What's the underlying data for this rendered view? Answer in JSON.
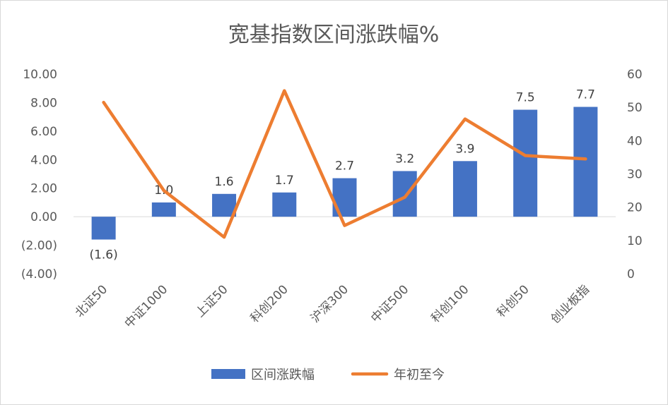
{
  "chart_data": {
    "type": "bar",
    "title": "宽基指数区间涨跌幅%",
    "categories": [
      "北证50",
      "中证1000",
      "上证50",
      "科创200",
      "沪深300",
      "中证500",
      "科创100",
      "科创50",
      "创业板指"
    ],
    "series": [
      {
        "name": "区间涨跌幅",
        "type": "bar",
        "axis": "left",
        "values": [
          -1.6,
          1.0,
          1.6,
          1.7,
          2.7,
          3.2,
          3.9,
          7.5,
          7.7
        ],
        "data_labels": [
          "(1.6)",
          "1.0",
          "1.6",
          "1.7",
          "2.7",
          "3.2",
          "3.9",
          "7.5",
          "7.7"
        ],
        "color": "#4472C4"
      },
      {
        "name": "年初至今",
        "type": "line",
        "axis": "right",
        "values": [
          51.5,
          25,
          11,
          55,
          14.5,
          23,
          46.5,
          35.5,
          34.5
        ],
        "color": "#ED7D31"
      }
    ],
    "y_left": {
      "ylim": [
        -4,
        10
      ],
      "ticks": [
        10,
        8,
        6,
        4,
        2,
        0,
        -2,
        -4
      ],
      "tick_labels": [
        "10.00",
        "8.00",
        "6.00",
        "4.00",
        "2.00",
        "0.00",
        "(2.00)",
        "(4.00)"
      ]
    },
    "y_right": {
      "ylim": [
        0,
        60
      ],
      "ticks": [
        60,
        50,
        40,
        30,
        20,
        10,
        0
      ],
      "tick_labels": [
        "60",
        "50",
        "40",
        "30",
        "20",
        "10",
        "0"
      ]
    },
    "xlabel": "",
    "ylabel": "",
    "grid": false,
    "legend": "bottom",
    "negative_label_color": "#FF0000"
  }
}
